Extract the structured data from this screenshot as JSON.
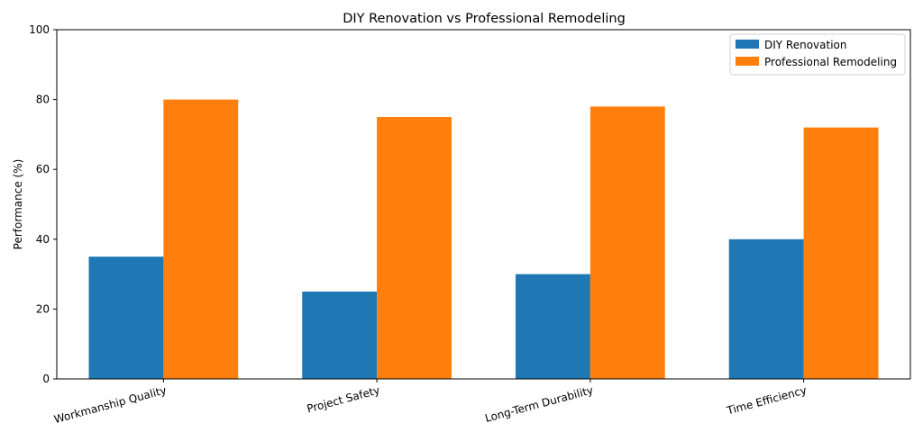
{
  "chart_data": {
    "type": "bar",
    "title": "DIY Renovation vs Professional Remodeling",
    "xlabel": "",
    "ylabel": "Performance (%)",
    "ylim": [
      0,
      100
    ],
    "yticks": [
      "0",
      "20",
      "40",
      "60",
      "80",
      "100"
    ],
    "categories": [
      "Workmanship Quality",
      "Project Safety",
      "Long-Term Durability",
      "Time Efficiency"
    ],
    "series": [
      {
        "name": "DIY Renovation",
        "color": "#1f77b4",
        "values": [
          35,
          25,
          30,
          40
        ]
      },
      {
        "name": "Professional Remodeling",
        "color": "#ff7f0e",
        "values": [
          80,
          75,
          78,
          72
        ]
      }
    ],
    "grid": false,
    "legend_position": "top-right"
  }
}
